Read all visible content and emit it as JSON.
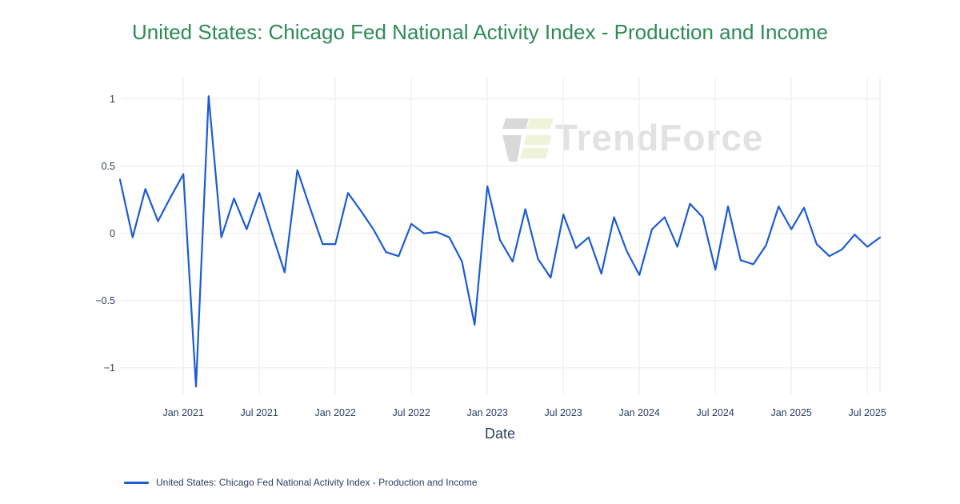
{
  "title": {
    "text": "United States: Chicago Fed National Activity Index - Production and Income"
  },
  "watermark": {
    "text": "TrendForce"
  },
  "colors": {
    "title": "#2e8b57",
    "line": "#1b5cd3",
    "axis_text": "#2a3f5f",
    "grid": "#f0efec",
    "watermark_text": "#e2e2e2",
    "watermark_gray": "#d9d9d9",
    "watermark_green": "#eef3da"
  },
  "chart_data": {
    "type": "line",
    "title": "United States: Chicago Fed National Activity Index - Production and Income",
    "xlabel": "Date",
    "ylabel": "",
    "ylim": [
      -1.18,
      1.17
    ],
    "grid": true,
    "legend_position": "bottom-left",
    "y_ticks": [
      {
        "label": "1",
        "value": 1
      },
      {
        "label": "0.5",
        "value": 0.5
      },
      {
        "label": "0",
        "value": 0
      },
      {
        "label": "−0.5",
        "value": -0.5
      },
      {
        "label": "−1",
        "value": -1
      }
    ],
    "x_ticks": [
      {
        "label": "Jan 2021",
        "index": 5
      },
      {
        "label": "Jul 2021",
        "index": 11
      },
      {
        "label": "Jan 2022",
        "index": 17
      },
      {
        "label": "Jul 2022",
        "index": 23
      },
      {
        "label": "Jan 2023",
        "index": 29
      },
      {
        "label": "Jul 2023",
        "index": 35
      },
      {
        "label": "Jan 2024",
        "index": 41
      },
      {
        "label": "Jul 2024",
        "index": 47
      },
      {
        "label": "Jan 2025",
        "index": 53
      },
      {
        "label": "Jul 2025",
        "index": 59
      }
    ],
    "right_edge_gridline": true,
    "x": [
      "Aug 2020",
      "Sep 2020",
      "Oct 2020",
      "Nov 2020",
      "Dec 2020",
      "Jan 2021",
      "Feb 2021",
      "Mar 2021",
      "Apr 2021",
      "May 2021",
      "Jun 2021",
      "Jul 2021",
      "Aug 2021",
      "Sep 2021",
      "Oct 2021",
      "Nov 2021",
      "Dec 2021",
      "Jan 2022",
      "Feb 2022",
      "Mar 2022",
      "Apr 2022",
      "May 2022",
      "Jun 2022",
      "Jul 2022",
      "Aug 2022",
      "Sep 2022",
      "Oct 2022",
      "Nov 2022",
      "Dec 2022",
      "Jan 2023",
      "Feb 2023",
      "Mar 2023",
      "Apr 2023",
      "May 2023",
      "Jun 2023",
      "Jul 2023",
      "Aug 2023",
      "Sep 2023",
      "Oct 2023",
      "Nov 2023",
      "Dec 2023",
      "Jan 2024",
      "Feb 2024",
      "Mar 2024",
      "Apr 2024",
      "May 2024",
      "Jun 2024",
      "Jul 2024",
      "Aug 2024",
      "Sep 2024",
      "Oct 2024",
      "Nov 2024",
      "Dec 2024",
      "Jan 2025",
      "Feb 2025",
      "Mar 2025",
      "Apr 2025",
      "May 2025",
      "Jun 2025",
      "Jul 2025",
      "Aug 2025"
    ],
    "series": [
      {
        "name": "United States: Chicago Fed National Activity Index - Production and Income",
        "color": "#1b5cd3",
        "values": [
          0.4,
          -0.03,
          0.33,
          0.09,
          0.27,
          0.44,
          -1.14,
          1.02,
          -0.03,
          0.26,
          0.03,
          0.3,
          0.0,
          -0.29,
          0.47,
          0.19,
          -0.08,
          -0.08,
          0.3,
          0.17,
          0.03,
          -0.14,
          -0.17,
          0.07,
          0.0,
          0.01,
          -0.03,
          -0.21,
          -0.68,
          0.35,
          -0.05,
          -0.21,
          0.18,
          -0.19,
          -0.33,
          0.14,
          -0.11,
          -0.03,
          -0.3,
          0.12,
          -0.13,
          -0.31,
          0.03,
          0.12,
          -0.1,
          0.22,
          0.12,
          -0.27,
          0.2,
          -0.2,
          -0.23,
          -0.09,
          0.2,
          0.03,
          0.19,
          -0.08,
          -0.17,
          -0.12,
          -0.01,
          -0.1,
          -0.03
        ]
      }
    ]
  }
}
